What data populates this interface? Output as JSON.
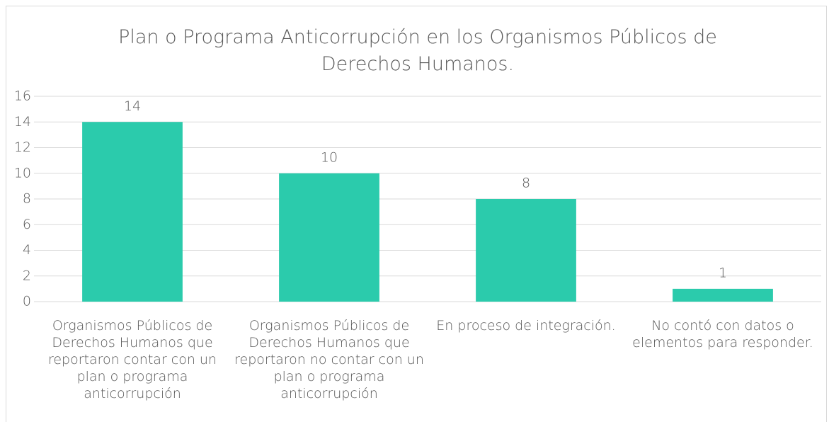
{
  "chart_data": {
    "type": "bar",
    "title": "Plan o Programa Anticorrupción en los Organismos Públicos de Derechos Humanos.",
    "categories": [
      "Organismos Públicos de Derechos Humanos que reportaron contar con un plan o programa anticorrupción",
      "Organismos Públicos de Derechos Humanos que reportaron no contar con un plan o programa anticorrupción",
      "En proceso de integración.",
      "No contó con datos o elementos para responder."
    ],
    "values": [
      14,
      10,
      8,
      1
    ],
    "color": "#2bcbac",
    "ylim": [
      0,
      16
    ],
    "yticks": [
      0,
      2,
      4,
      6,
      8,
      10,
      12,
      14,
      16
    ],
    "grid": true
  }
}
